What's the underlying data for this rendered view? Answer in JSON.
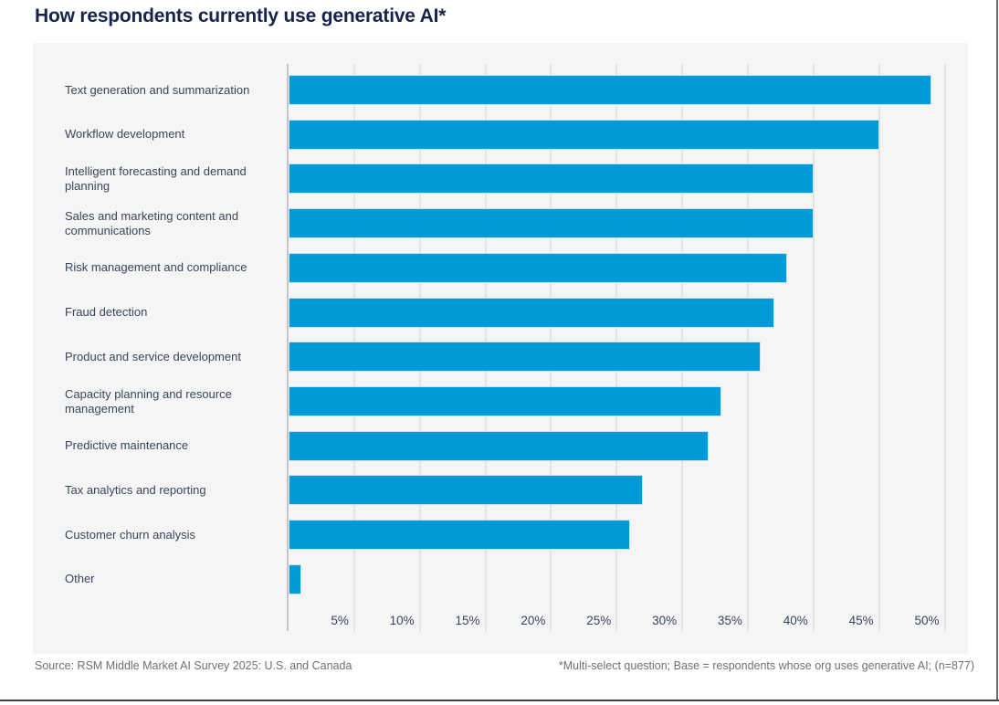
{
  "page": {
    "title": "How respondents currently use generative AI*",
    "footer": {
      "source": "Source: RSM Middle Market AI Survey 2025: U.S. and Canada",
      "note": "*Multi-select question; Base = respondents whose org uses generative AI; (n=877)"
    }
  },
  "colors": {
    "bar": "#0099DA",
    "bar_edge": "#C9E7F6",
    "title_text": "#15234E",
    "label_text": "#39455C",
    "panel_bg": "#F5F5F6",
    "gridline": "#E4E4E6",
    "axis_line": "#C6C6C8",
    "footer_text": "#6F6F6F"
  },
  "chart_data": {
    "type": "bar",
    "orientation": "horizontal",
    "title": "How respondents currently use generative AI*",
    "xlabel": "",
    "ylabel": "",
    "unit": "%",
    "xlim": [
      0,
      52
    ],
    "grid": true,
    "categories": [
      "Text generation and summarization",
      "Workflow development",
      "Intelligent forecasting and demand planning",
      "Sales and marketing content and communications",
      "Risk management and compliance",
      "Fraud detection",
      "Product and service development",
      "Capacity planning and resource management",
      "Predictive maintenance",
      "Tax analytics and reporting",
      "Customer churn analysis",
      "Other"
    ],
    "values": [
      49,
      45,
      40,
      40,
      38,
      37,
      36,
      33,
      32,
      27,
      26,
      1
    ],
    "xticks": [
      "5%",
      "10%",
      "15%",
      "20%",
      "25%",
      "30%",
      "35%",
      "40%",
      "45%",
      "50%"
    ],
    "xtick_values": [
      5,
      10,
      15,
      20,
      25,
      30,
      35,
      40,
      45,
      50
    ]
  }
}
